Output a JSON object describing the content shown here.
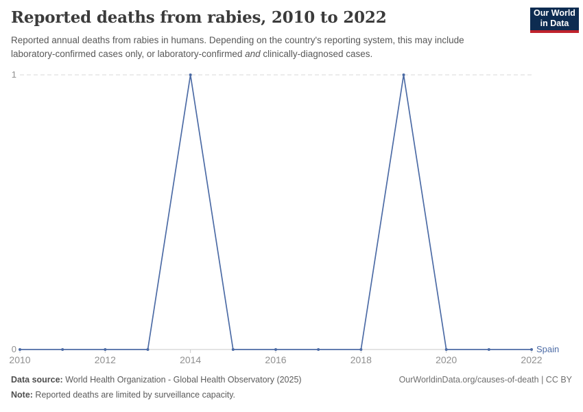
{
  "header": {
    "title": "Reported deaths from rabies, 2010 to 2022",
    "subtitle_part1": "Reported annual deaths from rabies in humans. Depending on the country's reporting system, this may include laboratory-confirmed cases only, or laboratory-confirmed ",
    "subtitle_italic": "and",
    "subtitle_part2": " clinically-diagnosed cases.",
    "logo_line1": "Our World",
    "logo_line2": "in Data"
  },
  "chart_data": {
    "type": "line",
    "title": "Reported deaths from rabies, 2010 to 2022",
    "x": [
      2010,
      2011,
      2012,
      2013,
      2014,
      2015,
      2016,
      2017,
      2018,
      2019,
      2020,
      2021,
      2022
    ],
    "series": [
      {
        "name": "Spain",
        "values": [
          0,
          0,
          0,
          0,
          1,
          0,
          0,
          0,
          0,
          1,
          0,
          0,
          0
        ],
        "color": "#4c6ba5"
      }
    ],
    "x_ticks": [
      2010,
      2012,
      2014,
      2016,
      2018,
      2020,
      2022
    ],
    "y_ticks": [
      0,
      1
    ],
    "xlim": [
      2010,
      2022
    ],
    "ylim": [
      0,
      1
    ],
    "xlabel": "",
    "ylabel": "",
    "grid": "horizontal dashed gridline at y=1, solid baseline at y=0",
    "legend_position": "end-of-line label"
  },
  "colors": {
    "line": "#4c6ba5",
    "axis_text": "#8f8f8f",
    "gridline": "#d9d9d9",
    "baseline": "#c8c8c8",
    "logo_navy": "#0d2c51",
    "logo_red": "#c0232c"
  },
  "footer": {
    "data_source_label": "Data source:",
    "data_source_text": " World Health Organization - Global Health Observatory (2025)",
    "link_text": "OurWorldinData.org/causes-of-death | CC BY",
    "note_label": "Note:",
    "note_text": " Reported deaths are limited by surveillance capacity."
  }
}
